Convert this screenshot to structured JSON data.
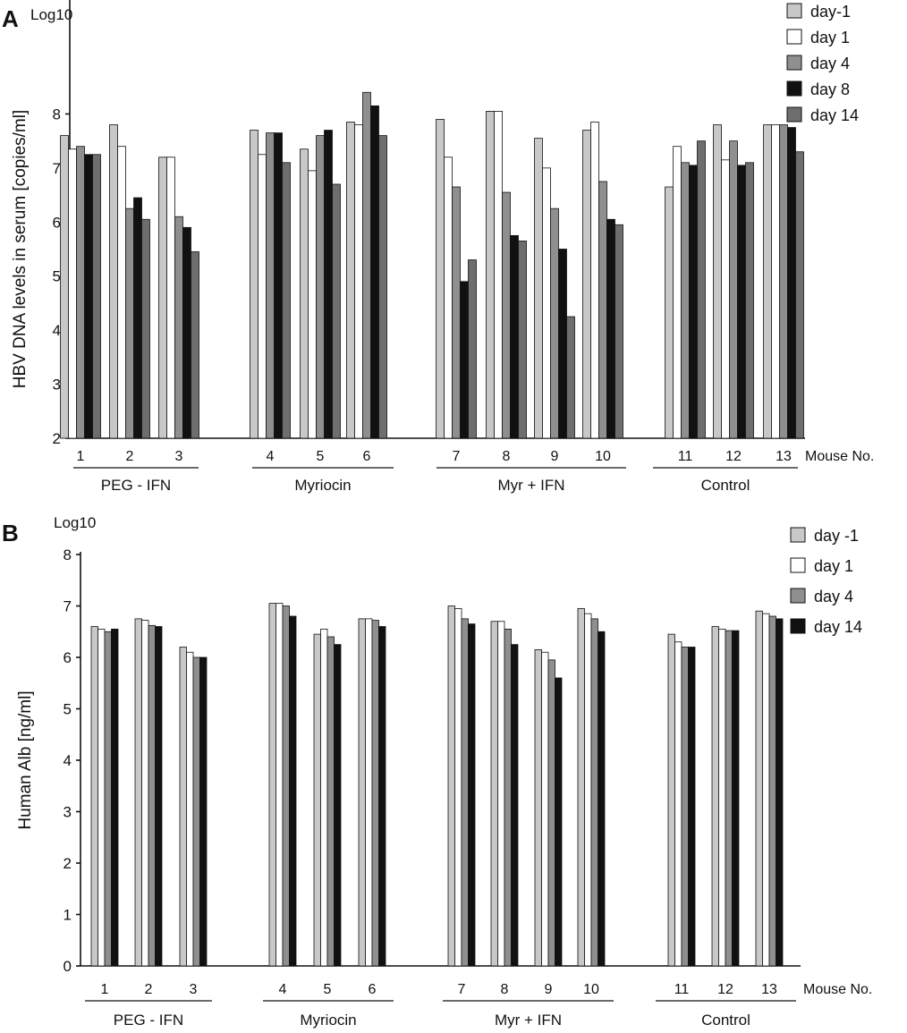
{
  "chart_data": [
    {
      "type": "bar",
      "panel": "A",
      "unit_label": "Log10",
      "ylabel": "HBV DNA levels in serum [copies/ml]",
      "xlabel": "Mouse No.",
      "ylim": [
        2,
        9
      ],
      "yticks": [
        "2",
        "3",
        "4",
        "5",
        "6",
        "7",
        "8"
      ],
      "grid": false,
      "legend_position": "top-right",
      "categories": [
        "1",
        "2",
        "3",
        "4",
        "5",
        "6",
        "7",
        "8",
        "9",
        "10",
        "11",
        "12",
        "13"
      ],
      "groups": [
        {
          "label": "PEG - IFN",
          "categories": [
            "1",
            "2",
            "3"
          ]
        },
        {
          "label": "Myriocin",
          "categories": [
            "4",
            "5",
            "6"
          ]
        },
        {
          "label": "Myr + IFN",
          "categories": [
            "7",
            "8",
            "9",
            "10"
          ]
        },
        {
          "label": "Control",
          "categories": [
            "11",
            "12",
            "13"
          ]
        }
      ],
      "series": [
        {
          "name": "day-1",
          "color": "#c8c8c8",
          "values": [
            7.6,
            7.8,
            7.2,
            7.7,
            7.35,
            7.85,
            7.9,
            8.05,
            7.55,
            7.7,
            6.65,
            7.8,
            7.8
          ]
        },
        {
          "name": "day 1",
          "color": "#ffffff",
          "values": [
            7.35,
            7.4,
            7.2,
            7.25,
            6.95,
            7.8,
            7.2,
            8.05,
            7.0,
            7.85,
            7.4,
            7.15,
            7.8
          ]
        },
        {
          "name": "day 4",
          "color": "#8f8f8f",
          "values": [
            7.4,
            6.25,
            6.1,
            7.65,
            7.6,
            8.4,
            6.65,
            6.55,
            6.25,
            6.75,
            7.1,
            7.5,
            7.8
          ]
        },
        {
          "name": "day 8",
          "color": "#111111",
          "values": [
            7.25,
            6.45,
            5.9,
            7.65,
            7.7,
            8.15,
            4.9,
            5.75,
            5.5,
            6.05,
            7.05,
            7.05,
            7.75
          ]
        },
        {
          "name": "day 14",
          "color": "#6e6e6e",
          "values": [
            7.25,
            6.05,
            5.45,
            7.1,
            6.7,
            7.6,
            5.3,
            5.65,
            4.25,
            5.95,
            7.5,
            7.1,
            7.3
          ]
        }
      ]
    },
    {
      "type": "bar",
      "panel": "B",
      "unit_label": "Log10",
      "ylabel": "Human  Alb [ng/ml]",
      "xlabel": "Mouse No.",
      "ylim": [
        0,
        8
      ],
      "yticks": [
        "0",
        "1",
        "2",
        "3",
        "4",
        "5",
        "6",
        "7",
        "8"
      ],
      "grid": false,
      "legend_position": "top-right",
      "categories": [
        "1",
        "2",
        "3",
        "4",
        "5",
        "6",
        "7",
        "8",
        "9",
        "10",
        "11",
        "12",
        "13"
      ],
      "groups": [
        {
          "label": "PEG - IFN",
          "categories": [
            "1",
            "2",
            "3"
          ]
        },
        {
          "label": "Myriocin",
          "categories": [
            "4",
            "5",
            "6"
          ]
        },
        {
          "label": "Myr + IFN",
          "categories": [
            "7",
            "8",
            "9",
            "10"
          ]
        },
        {
          "label": "Control",
          "categories": [
            "11",
            "12",
            "13"
          ]
        }
      ],
      "series": [
        {
          "name": "day -1",
          "color": "#c8c8c8",
          "values": [
            6.6,
            6.75,
            6.2,
            7.05,
            6.45,
            6.75,
            7.0,
            6.7,
            6.15,
            6.95,
            6.45,
            6.6,
            6.9
          ]
        },
        {
          "name": "day 1",
          "color": "#ffffff",
          "values": [
            6.55,
            6.72,
            6.1,
            7.05,
            6.55,
            6.75,
            6.95,
            6.7,
            6.1,
            6.85,
            6.3,
            6.55,
            6.85
          ]
        },
        {
          "name": "day 4",
          "color": "#8f8f8f",
          "values": [
            6.5,
            6.62,
            6.0,
            7.0,
            6.4,
            6.72,
            6.75,
            6.55,
            5.95,
            6.75,
            6.2,
            6.52,
            6.8
          ]
        },
        {
          "name": "day 14",
          "color": "#111111",
          "values": [
            6.55,
            6.6,
            6.0,
            6.8,
            6.25,
            6.6,
            6.65,
            6.25,
            5.6,
            6.5,
            6.2,
            6.52,
            6.75
          ]
        }
      ]
    }
  ]
}
